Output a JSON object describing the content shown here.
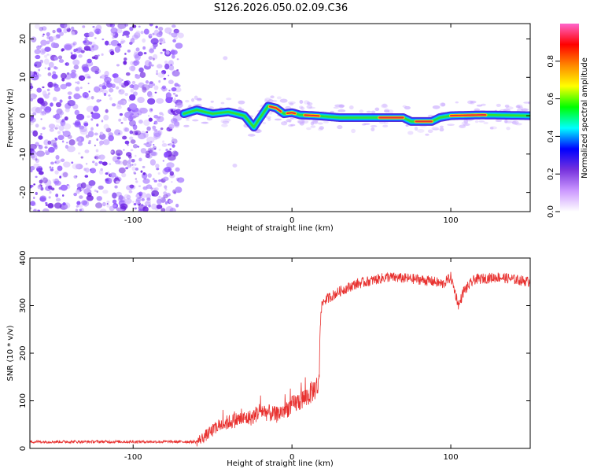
{
  "title": "S126.2026.050.02.09.C36",
  "chart_data": [
    {
      "type": "heatmap",
      "xlabel": "Height of straight line (km)",
      "ylabel": "Frequency (Hz)",
      "xlim": [
        -165,
        150
      ],
      "ylim": [
        -25,
        24
      ],
      "xticks": [
        -100,
        0,
        100
      ],
      "yticks": [
        -20,
        -10,
        0,
        10,
        20
      ],
      "noise_region_x": [
        -165,
        -70
      ],
      "signal_track": [
        [
          -68,
          0.5
        ],
        [
          -60,
          1.5
        ],
        [
          -50,
          0.5
        ],
        [
          -40,
          1.0
        ],
        [
          -30,
          0.0
        ],
        [
          -24,
          -3.0
        ],
        [
          -20,
          -0.5
        ],
        [
          -15,
          2.5
        ],
        [
          -10,
          2.0
        ],
        [
          -5,
          0.5
        ],
        [
          0,
          0.8
        ],
        [
          5,
          0.2
        ],
        [
          15,
          0.0
        ],
        [
          30,
          -0.5
        ],
        [
          50,
          -0.5
        ],
        [
          70,
          -0.5
        ],
        [
          75,
          -1.5
        ],
        [
          88,
          -1.5
        ],
        [
          93,
          -0.5
        ],
        [
          100,
          0.0
        ],
        [
          120,
          0.2
        ],
        [
          150,
          0.0
        ]
      ]
    },
    {
      "type": "line",
      "xlabel": "Height of straight line (km)",
      "ylabel": "SNR (10 * v/v)",
      "xlim": [
        -165,
        150
      ],
      "ylim": [
        0,
        400
      ],
      "xticks": [
        -100,
        0,
        100
      ],
      "yticks": [
        0,
        100,
        200,
        300,
        400
      ],
      "series_color": "#e8312f",
      "key_points": [
        [
          -165,
          14
        ],
        [
          -60,
          14
        ],
        [
          -55,
          25
        ],
        [
          -45,
          50
        ],
        [
          -35,
          60
        ],
        [
          -25,
          65
        ],
        [
          -20,
          80
        ],
        [
          -10,
          70
        ],
        [
          0,
          90
        ],
        [
          10,
          110
        ],
        [
          17,
          135
        ],
        [
          18,
          290
        ],
        [
          20,
          310
        ],
        [
          30,
          330
        ],
        [
          40,
          345
        ],
        [
          60,
          360
        ],
        [
          80,
          355
        ],
        [
          90,
          350
        ],
        [
          95,
          345
        ],
        [
          100,
          360
        ],
        [
          105,
          300
        ],
        [
          108,
          330
        ],
        [
          115,
          355
        ],
        [
          130,
          360
        ],
        [
          150,
          350
        ]
      ]
    }
  ],
  "colorbar": {
    "label": "Normalized spectral amplitude",
    "range": [
      0,
      1
    ],
    "ticks": [
      "0.0",
      "0.2",
      "0.4",
      "0.6",
      "0.8"
    ],
    "colors": [
      "#ffffff",
      "#cc99ff",
      "#7733dd",
      "#0000ff",
      "#00ffff",
      "#00ff00",
      "#ffff00",
      "#ff8800",
      "#ff0000",
      "#ff66cc"
    ]
  }
}
